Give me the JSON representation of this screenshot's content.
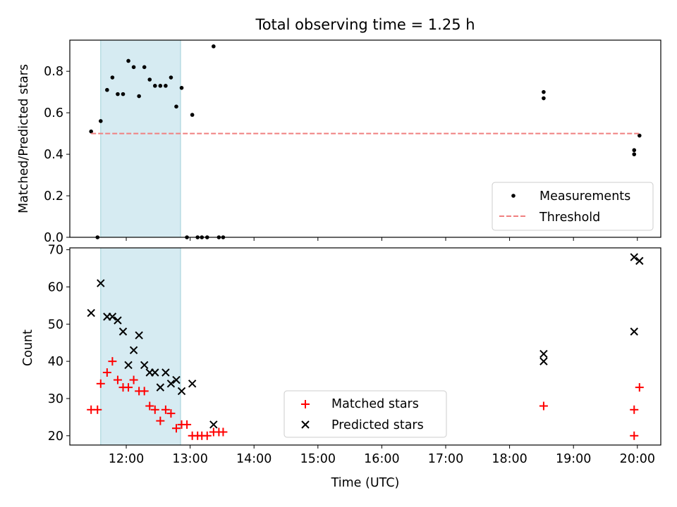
{
  "chart_data": [
    {
      "type": "scatter",
      "title": "Total observing time = 1.25 h",
      "xlabel": "",
      "ylabel": "Matched/Predicted stars",
      "xlim": [
        "11:07",
        "20:22"
      ],
      "ylim": [
        0,
        0.95
      ],
      "yticks": [
        "0.0",
        "0.2",
        "0.4",
        "0.6",
        "0.8"
      ],
      "shaded_interval": [
        "11:36",
        "12:51"
      ],
      "series": [
        {
          "name": "Measurements",
          "marker": "dot",
          "color": "#000000",
          "points": [
            [
              "11:27",
              0.51
            ],
            [
              "11:33",
              0.0
            ],
            [
              "11:36",
              0.56
            ],
            [
              "11:42",
              0.71
            ],
            [
              "11:47",
              0.77
            ],
            [
              "11:52",
              0.69
            ],
            [
              "11:57",
              0.69
            ],
            [
              "12:02",
              0.85
            ],
            [
              "12:07",
              0.82
            ],
            [
              "12:12",
              0.68
            ],
            [
              "12:17",
              0.82
            ],
            [
              "12:22",
              0.76
            ],
            [
              "12:27",
              0.73
            ],
            [
              "12:32",
              0.73
            ],
            [
              "12:37",
              0.73
            ],
            [
              "12:42",
              0.77
            ],
            [
              "12:47",
              0.63
            ],
            [
              "12:52",
              0.72
            ],
            [
              "12:57",
              0.0
            ],
            [
              "13:02",
              0.59
            ],
            [
              "13:07",
              0.0
            ],
            [
              "13:11",
              0.0
            ],
            [
              "13:16",
              0.0
            ],
            [
              "13:22",
              0.92
            ],
            [
              "13:27",
              0.0
            ],
            [
              "13:31",
              0.0
            ],
            [
              "18:32",
              0.7
            ],
            [
              "18:32",
              0.67
            ],
            [
              "19:57",
              0.4
            ],
            [
              "19:57",
              0.42
            ],
            [
              "20:02",
              0.49
            ]
          ]
        },
        {
          "name": "Threshold",
          "style": "dashed",
          "color": "#f08080",
          "y": 0.5,
          "x_range": [
            "11:27",
            "20:02"
          ]
        }
      ],
      "legend": "bottom-right"
    },
    {
      "type": "scatter",
      "xlabel": "Time (UTC)",
      "ylabel": "Count",
      "xlim": [
        "11:07",
        "20:22"
      ],
      "ylim": [
        17.5,
        70.5
      ],
      "yticks": [
        "20",
        "30",
        "40",
        "50",
        "60",
        "70"
      ],
      "xticks": [
        "12:00",
        "13:00",
        "14:00",
        "15:00",
        "16:00",
        "17:00",
        "18:00",
        "19:00",
        "20:00"
      ],
      "shaded_interval": [
        "11:36",
        "12:51"
      ],
      "series": [
        {
          "name": "Matched stars",
          "marker": "+",
          "color": "#ff0000",
          "points": [
            [
              "11:27",
              27
            ],
            [
              "11:33",
              27
            ],
            [
              "11:36",
              34
            ],
            [
              "11:42",
              37
            ],
            [
              "11:47",
              40
            ],
            [
              "11:52",
              35
            ],
            [
              "11:57",
              33
            ],
            [
              "12:02",
              33
            ],
            [
              "12:07",
              35
            ],
            [
              "12:12",
              32
            ],
            [
              "12:17",
              32
            ],
            [
              "12:22",
              28
            ],
            [
              "12:27",
              27
            ],
            [
              "12:32",
              24
            ],
            [
              "12:37",
              27
            ],
            [
              "12:42",
              26
            ],
            [
              "12:47",
              22
            ],
            [
              "12:52",
              23
            ],
            [
              "12:57",
              23
            ],
            [
              "13:02",
              20
            ],
            [
              "13:07",
              20
            ],
            [
              "13:11",
              20
            ],
            [
              "13:16",
              20
            ],
            [
              "13:22",
              21
            ],
            [
              "13:27",
              21
            ],
            [
              "13:31",
              21
            ],
            [
              "18:32",
              28
            ],
            [
              "19:57",
              27
            ],
            [
              "19:57",
              20
            ],
            [
              "20:02",
              33
            ]
          ]
        },
        {
          "name": "Predicted stars",
          "marker": "x",
          "color": "#000000",
          "points": [
            [
              "11:27",
              53
            ],
            [
              "11:36",
              61
            ],
            [
              "11:42",
              52
            ],
            [
              "11:47",
              52
            ],
            [
              "11:52",
              51
            ],
            [
              "11:57",
              48
            ],
            [
              "12:02",
              39
            ],
            [
              "12:07",
              43
            ],
            [
              "12:12",
              47
            ],
            [
              "12:17",
              39
            ],
            [
              "12:22",
              37
            ],
            [
              "12:27",
              37
            ],
            [
              "12:32",
              33
            ],
            [
              "12:37",
              37
            ],
            [
              "12:42",
              34
            ],
            [
              "12:47",
              35
            ],
            [
              "12:52",
              32
            ],
            [
              "13:02",
              34
            ],
            [
              "13:22",
              23
            ],
            [
              "18:32",
              42
            ],
            [
              "18:32",
              40
            ],
            [
              "19:57",
              68
            ],
            [
              "19:57",
              48
            ],
            [
              "20:02",
              67
            ]
          ]
        }
      ],
      "legend": "bottom-center"
    }
  ]
}
